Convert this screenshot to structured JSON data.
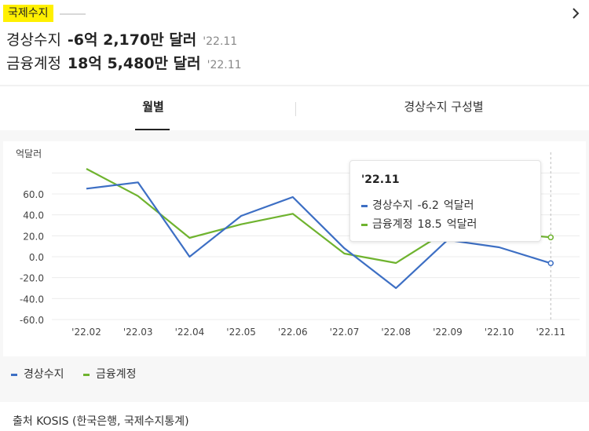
{
  "header": {
    "tag": "국제수지",
    "lines": [
      {
        "label": "경상수지",
        "value": "-6억 2,170만 달러",
        "period": "'22.11"
      },
      {
        "label": "금융계정",
        "value": "18억 5,480만 달러",
        "period": "'22.11"
      }
    ]
  },
  "tabs": [
    {
      "label": "월별",
      "active": true
    },
    {
      "label": "경상수지 구성별",
      "active": false
    }
  ],
  "colors": {
    "current": "#3d6fc4",
    "financial": "#6fb32f"
  },
  "tooltip": {
    "title": "'22.11",
    "rows": [
      {
        "name": "경상수지",
        "value": "-6.2",
        "unit": "억달러"
      },
      {
        "name": "금융계정",
        "value": "18.5",
        "unit": "억달러"
      }
    ]
  },
  "chart_data": {
    "type": "line",
    "ylabel": "억달러",
    "ylim": [
      -60,
      80
    ],
    "yticks": [
      -60,
      -40,
      -20,
      0,
      20,
      40,
      60
    ],
    "ytick_labels": [
      "-60.0",
      "-40.0",
      "-20.0",
      "0.0",
      "20.0",
      "40.0",
      "60.0"
    ],
    "categories": [
      "'22.02",
      "'22.03",
      "'22.04",
      "'22.05",
      "'22.06",
      "'22.07",
      "'22.08",
      "'22.09",
      "'22.10",
      "'22.11"
    ],
    "series": [
      {
        "name": "경상수지",
        "values": [
          65.0,
          71.0,
          0.0,
          39.0,
          57.0,
          8.0,
          -30.0,
          16.0,
          9.0,
          -6.2
        ]
      },
      {
        "name": "금융계정",
        "values": [
          84.0,
          58.0,
          18.0,
          31.0,
          41.0,
          3.0,
          -6.0,
          25.0,
          23.0,
          18.5
        ]
      }
    ],
    "grid": true,
    "legend": "bottom-left",
    "highlight_index": 9
  },
  "footer": {
    "source": "출처 KOSIS (한국은행, 국제수지통계)"
  }
}
